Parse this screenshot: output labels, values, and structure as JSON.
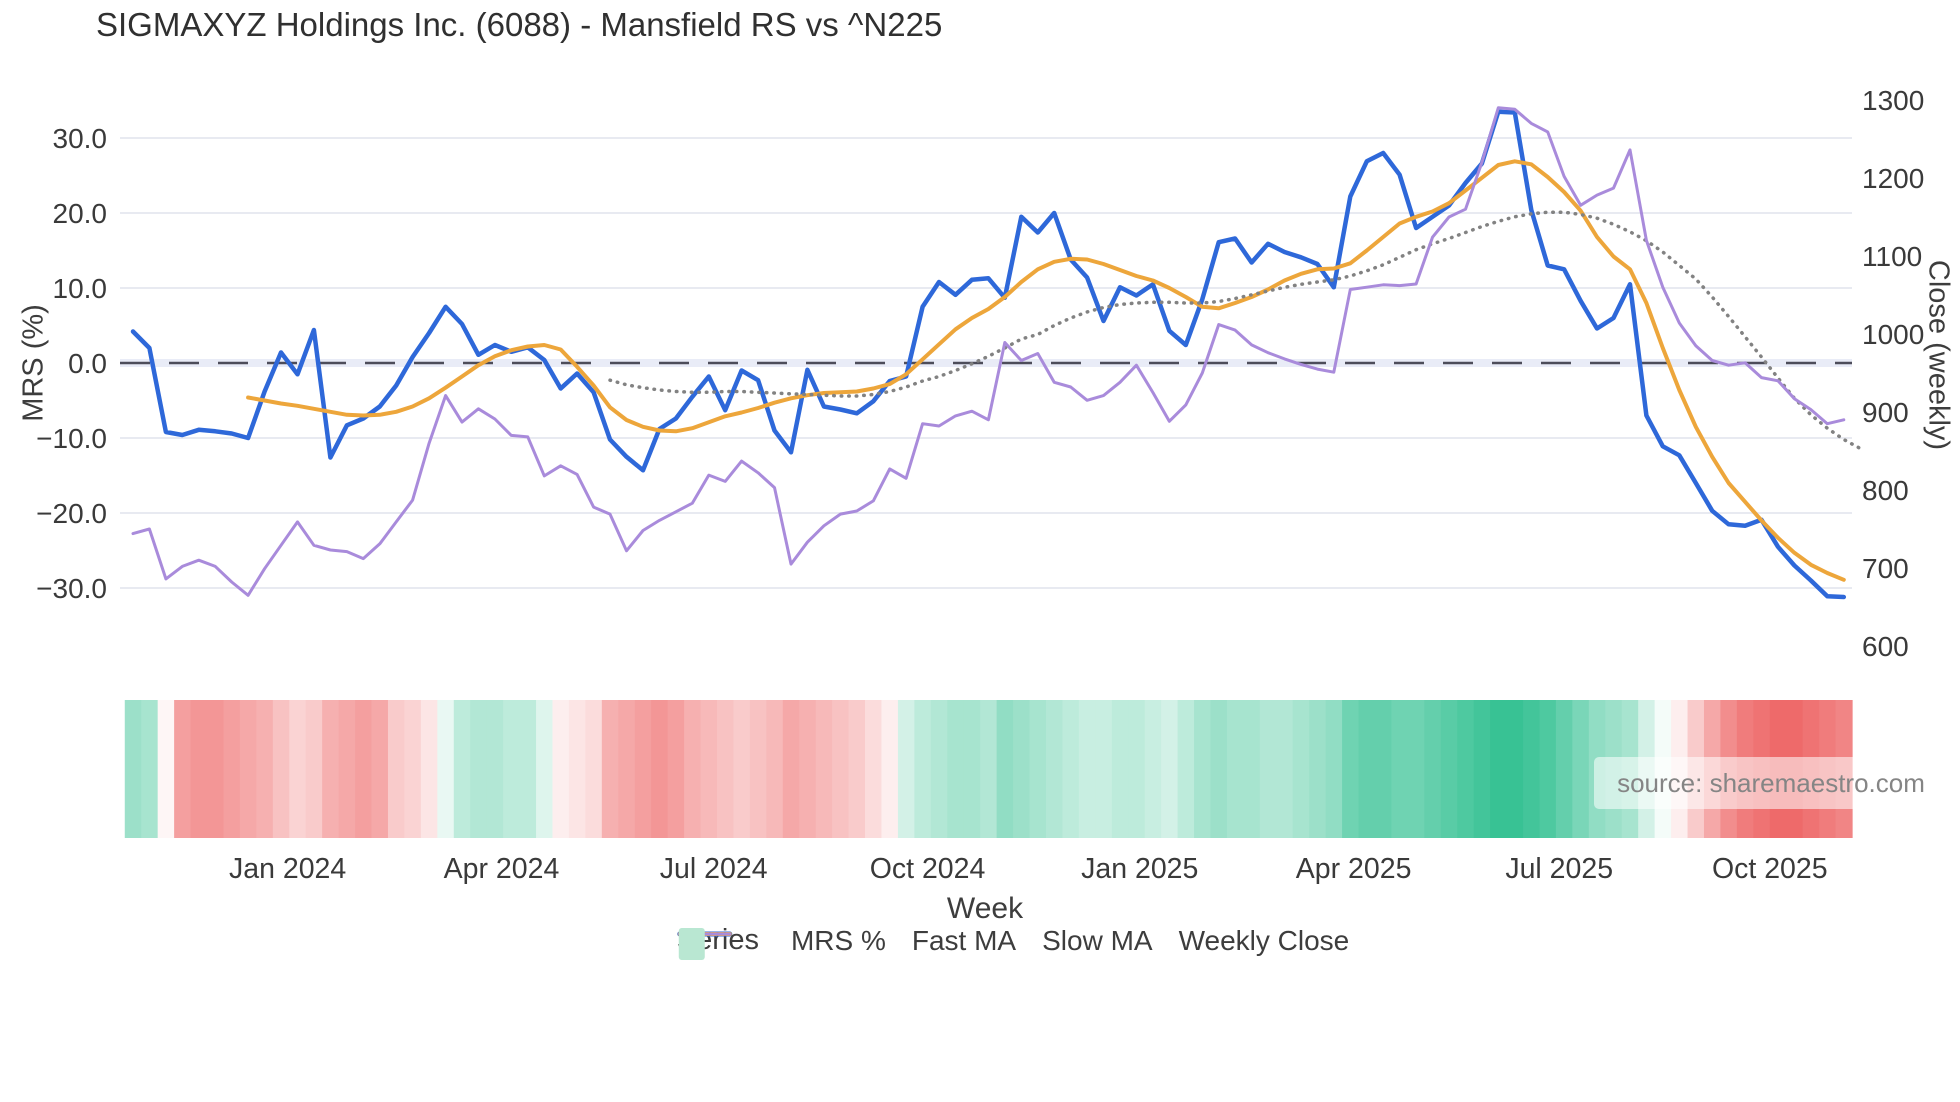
{
  "title": "SIGMAXYZ Holdings Inc. (6088) - Mansfield RS vs ^N225",
  "source_note": "source: sharemaestro.com",
  "axis_titles": {
    "x": "Week",
    "y_left": "MRS (%)",
    "y_right": "Close (weekly)"
  },
  "legend": {
    "title": "Series",
    "items": [
      {
        "label": "MRS %",
        "color": "#2e68d9",
        "style": "solid",
        "thickness": 5
      },
      {
        "label": "Fast MA",
        "color": "#eda63b",
        "style": "solid",
        "thickness": 4
      },
      {
        "label": "Slow MA",
        "color": "#828282",
        "style": "dotted",
        "thickness": 3.5
      },
      {
        "label": "Weekly Close",
        "color": "#a98bdb",
        "style": "solid",
        "thickness": 3
      },
      {
        "label": "",
        "color": "#b9e7d2",
        "style": "square",
        "thickness": 0
      }
    ]
  },
  "colors": {
    "mrs_line": "#2e68d9",
    "fast_ma_line": "#eda63b",
    "slow_ma_line": "#828282",
    "weekly_close_line": "#a98bdb",
    "zero_dash_line": "#4d4d5a",
    "gridline": "#e8eaf1",
    "zero_band": "#e9ecf7",
    "heat_green": "#22bb88",
    "heat_red": "#eb5050",
    "text": "#3a3a3a"
  },
  "chart_data": {
    "type": "line",
    "title": "SIGMAXYZ Holdings Inc. (6088) - Mansfield RS vs ^N225",
    "xlabel": "Week",
    "x_unit": "weekly, ~Nov 2023 through Nov 2025",
    "n_weeks": 105,
    "grid": true,
    "legend_position": "bottom",
    "x_ticks": [
      {
        "label": "Jan 2024",
        "week": 9.4
      },
      {
        "label": "Apr 2024",
        "week": 22.4
      },
      {
        "label": "Jul 2024",
        "week": 35.3
      },
      {
        "label": "Oct 2024",
        "week": 48.3
      },
      {
        "label": "Jan 2025",
        "week": 61.2
      },
      {
        "label": "Apr 2025",
        "week": 74.2
      },
      {
        "label": "Jul 2025",
        "week": 86.7
      },
      {
        "label": "Oct 2025",
        "week": 99.5
      }
    ],
    "y_left": {
      "label": "MRS (%)",
      "ticks": [
        30.0,
        20.0,
        10.0,
        0.0,
        -10.0,
        -20.0,
        -30.0
      ],
      "range": [
        -39.6,
        38.4
      ],
      "zero_line_dashed": true
    },
    "y_right": {
      "label": "Close (weekly)",
      "ticks": [
        1300,
        1200,
        1100,
        1000,
        900,
        800,
        700,
        600
      ],
      "range": [
        582,
        1332
      ]
    },
    "series": [
      {
        "name": "MRS %",
        "axis": "left",
        "color": "#2e68d9",
        "width": 4.5,
        "dash": "solid",
        "values": [
          4.2,
          2.0,
          -9.2,
          -9.6,
          -8.9,
          -9.1,
          -9.4,
          -10.0,
          -3.8,
          1.4,
          -1.5,
          4.4,
          -12.6,
          -8.3,
          -7.4,
          -5.8,
          -3.0,
          0.8,
          4.0,
          7.5,
          5.2,
          1.1,
          2.4,
          1.5,
          2.1,
          0.4,
          -3.4,
          -1.4,
          -3.9,
          -10.2,
          -12.5,
          -14.3,
          -8.8,
          -7.4,
          -4.5,
          -1.8,
          -6.3,
          -1.0,
          -2.3,
          -9.0,
          -11.9,
          -0.9,
          -5.8,
          -6.2,
          -6.7,
          -5.1,
          -2.4,
          -1.8,
          7.5,
          10.8,
          9.1,
          11.1,
          11.3,
          8.7,
          19.5,
          17.4,
          20.0,
          13.8,
          11.4,
          5.6,
          10.1,
          9.0,
          10.5,
          4.3,
          2.4,
          8.5,
          16.1,
          16.6,
          13.4,
          15.9,
          14.8,
          14.1,
          13.2,
          10.1,
          22.2,
          26.9,
          28.0,
          25.1,
          18.0,
          19.5,
          21.0,
          24.0,
          26.6,
          33.5,
          33.4,
          20.4,
          13.0,
          12.5,
          8.3,
          4.6,
          6.0,
          10.5,
          -7.0,
          -11.1,
          -12.3,
          -16.0,
          -19.7,
          -21.5,
          -21.7,
          -20.9,
          -24.5,
          -27.0,
          -29.0,
          -31.1,
          -31.2
        ]
      },
      {
        "name": "Fast MA",
        "axis": "left",
        "color": "#eda63b",
        "width": 4,
        "dash": "solid",
        "values": [
          null,
          null,
          null,
          null,
          null,
          null,
          null,
          -4.6,
          -5.0,
          -5.4,
          -5.7,
          -6.1,
          -6.5,
          -6.9,
          -7.0,
          -6.9,
          -6.5,
          -5.8,
          -4.7,
          -3.3,
          -1.8,
          -0.3,
          0.9,
          1.7,
          2.2,
          2.4,
          1.8,
          -0.5,
          -3.0,
          -5.9,
          -7.6,
          -8.5,
          -9.0,
          -9.1,
          -8.7,
          -7.9,
          -7.1,
          -6.6,
          -6.0,
          -5.3,
          -4.7,
          -4.3,
          -4.0,
          -3.9,
          -3.8,
          -3.4,
          -2.8,
          -1.5,
          0.5,
          2.5,
          4.5,
          6.0,
          7.2,
          8.8,
          10.8,
          12.5,
          13.5,
          13.9,
          13.8,
          13.2,
          12.4,
          11.6,
          11.0,
          10.0,
          8.8,
          7.5,
          7.3,
          8.0,
          8.8,
          9.8,
          11.0,
          11.9,
          12.5,
          12.6,
          13.3,
          15.0,
          16.8,
          18.6,
          19.5,
          20.2,
          21.3,
          23.0,
          24.7,
          26.4,
          26.9,
          26.5,
          24.8,
          22.8,
          20.3,
          16.8,
          14.2,
          12.5,
          8.0,
          2.0,
          -3.6,
          -8.5,
          -12.5,
          -16.0,
          -18.5,
          -21.0,
          -23.3,
          -25.3,
          -26.9,
          -28.0,
          -28.9
        ]
      },
      {
        "name": "Slow MA",
        "axis": "left",
        "color": "#828282",
        "width": 3.5,
        "dash": "dotted",
        "values": [
          null,
          null,
          null,
          null,
          null,
          null,
          null,
          null,
          null,
          null,
          null,
          null,
          null,
          null,
          null,
          null,
          null,
          null,
          null,
          null,
          null,
          null,
          null,
          null,
          null,
          null,
          null,
          null,
          null,
          -2.3,
          -2.9,
          -3.3,
          -3.6,
          -3.8,
          -3.9,
          -3.9,
          -3.8,
          -3.8,
          -3.9,
          -4.0,
          -4.1,
          -4.2,
          -4.3,
          -4.4,
          -4.4,
          -4.2,
          -3.8,
          -3.2,
          -2.4,
          -1.8,
          -1.0,
          -0.1,
          0.9,
          2.0,
          3.2,
          3.8,
          5.0,
          6.0,
          6.8,
          7.4,
          7.8,
          8.0,
          8.1,
          8.1,
          8.0,
          8.0,
          8.2,
          8.6,
          9.1,
          9.6,
          10.1,
          10.5,
          10.8,
          11.1,
          11.6,
          12.3,
          13.1,
          14.1,
          15.1,
          15.9,
          16.6,
          17.4,
          18.2,
          18.9,
          19.5,
          19.9,
          20.1,
          20.1,
          19.8,
          19.3,
          18.5,
          17.5,
          16.3,
          14.8,
          13.0,
          11.2,
          8.8,
          6.2,
          3.5,
          0.8,
          -2.0,
          -4.7,
          -6.9,
          -8.7,
          -10.2,
          -11.4
        ]
      },
      {
        "name": "Weekly Close",
        "axis": "right",
        "color": "#a98bdb",
        "width": 3,
        "dash": "solid",
        "values": [
          744,
          750,
          686,
          702,
          710,
          702,
          682,
          665,
          699,
          729,
          759,
          729,
          723,
          721,
          712,
          731,
          759,
          787,
          860,
          921,
          887,
          904,
          891,
          870,
          868,
          818,
          831,
          820,
          778,
          769,
          722,
          748,
          761,
          772,
          783,
          819,
          811,
          837,
          822,
          803,
          705,
          733,
          754,
          769,
          773,
          786,
          827,
          815,
          885,
          882,
          895,
          901,
          890,
          989,
          966,
          975,
          938,
          932,
          915,
          921,
          938,
          960,
          925,
          888,
          909,
          950,
          1012,
          1005,
          986,
          976,
          968,
          961,
          955,
          951,
          1057,
          1060,
          1063,
          1062,
          1064,
          1124,
          1150,
          1160,
          1220,
          1290,
          1288,
          1270,
          1259,
          1202,
          1165,
          1178,
          1187,
          1236,
          1120,
          1060,
          1014,
          985,
          966,
          960,
          963,
          944,
          940,
          917,
          903,
          885,
          890
        ]
      }
    ],
    "heatmap": {
      "description": "weekly signal strip below chart, red negative to green positive",
      "negative_color": "#eb5050",
      "positive_color": "#22bb88",
      "values": [
        0.45,
        0.4,
        -0.05,
        -0.55,
        -0.6,
        -0.6,
        -0.55,
        -0.5,
        -0.45,
        -0.35,
        -0.25,
        -0.3,
        -0.45,
        -0.5,
        -0.55,
        -0.5,
        -0.3,
        -0.25,
        -0.15,
        0.1,
        0.3,
        0.35,
        0.35,
        0.3,
        0.3,
        0.15,
        -0.1,
        -0.15,
        -0.2,
        -0.45,
        -0.5,
        -0.55,
        -0.6,
        -0.55,
        -0.45,
        -0.4,
        -0.35,
        -0.3,
        -0.35,
        -0.4,
        -0.5,
        -0.45,
        -0.4,
        -0.35,
        -0.3,
        -0.2,
        -0.1,
        0.2,
        0.3,
        0.35,
        0.4,
        0.4,
        0.35,
        0.5,
        0.45,
        0.4,
        0.35,
        0.3,
        0.25,
        0.25,
        0.3,
        0.3,
        0.25,
        0.2,
        0.3,
        0.4,
        0.45,
        0.4,
        0.4,
        0.35,
        0.35,
        0.4,
        0.45,
        0.5,
        0.65,
        0.7,
        0.7,
        0.65,
        0.65,
        0.7,
        0.75,
        0.8,
        0.85,
        0.9,
        0.9,
        0.85,
        0.8,
        0.7,
        0.6,
        0.5,
        0.45,
        0.4,
        0.2,
        0.05,
        -0.1,
        -0.3,
        -0.5,
        -0.65,
        -0.75,
        -0.8,
        -0.85,
        -0.85,
        -0.8,
        -0.75,
        -0.7
      ]
    }
  }
}
